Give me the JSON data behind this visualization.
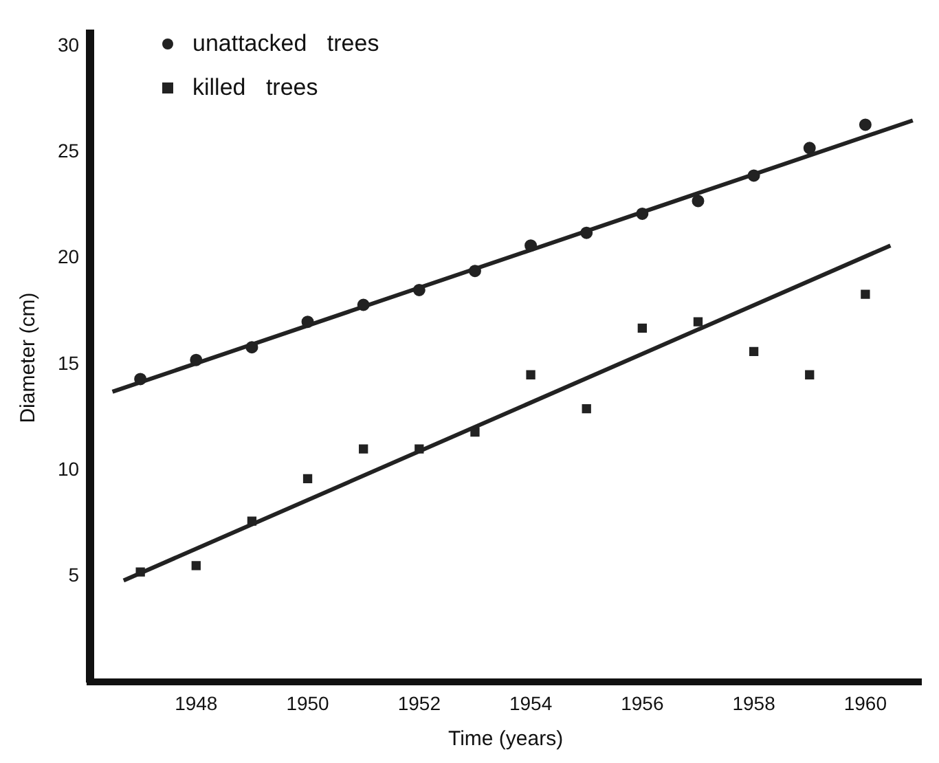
{
  "chart_data": {
    "type": "scatter",
    "xlabel": "Time (years)",
    "ylabel": "Diameter (cm)",
    "xlim": [
      1946.1,
      1961
    ],
    "ylim": [
      0,
      30.6
    ],
    "xticks": [
      1948,
      1950,
      1952,
      1954,
      1956,
      1958,
      1960
    ],
    "yticks": [
      5,
      10,
      15,
      20,
      25,
      30
    ],
    "grid": false,
    "legend": "top left",
    "x": [
      1947,
      1948,
      1949,
      1950,
      1951,
      1952,
      1953,
      1954,
      1955,
      1956,
      1957,
      1958,
      1959,
      1960
    ],
    "series": [
      {
        "name": "unattacked trees",
        "color": "#222222",
        "marker": "circle",
        "values": [
          14.3,
          15.2,
          15.8,
          17.0,
          17.8,
          18.5,
          19.4,
          20.6,
          21.2,
          22.1,
          22.7,
          23.9,
          25.2,
          26.3
        ]
      },
      {
        "name": "killed trees",
        "color": "#222222",
        "marker": "square",
        "values": [
          5.2,
          5.5,
          7.6,
          9.6,
          11.0,
          11.0,
          11.8,
          14.5,
          12.9,
          16.7,
          17.0,
          15.6,
          14.5,
          18.3
        ]
      },
      {
        "type": "line",
        "color": "#222222",
        "marker": "none",
        "line_style": "solid",
        "x": [
          1946.5,
          1960.85
        ],
        "values": [
          13.7,
          26.5
        ]
      },
      {
        "type": "line",
        "color": "#222222",
        "marker": "none",
        "line_style": "solid",
        "x": [
          1946.7,
          1960.45
        ],
        "values": [
          4.8,
          20.6
        ]
      }
    ]
  }
}
